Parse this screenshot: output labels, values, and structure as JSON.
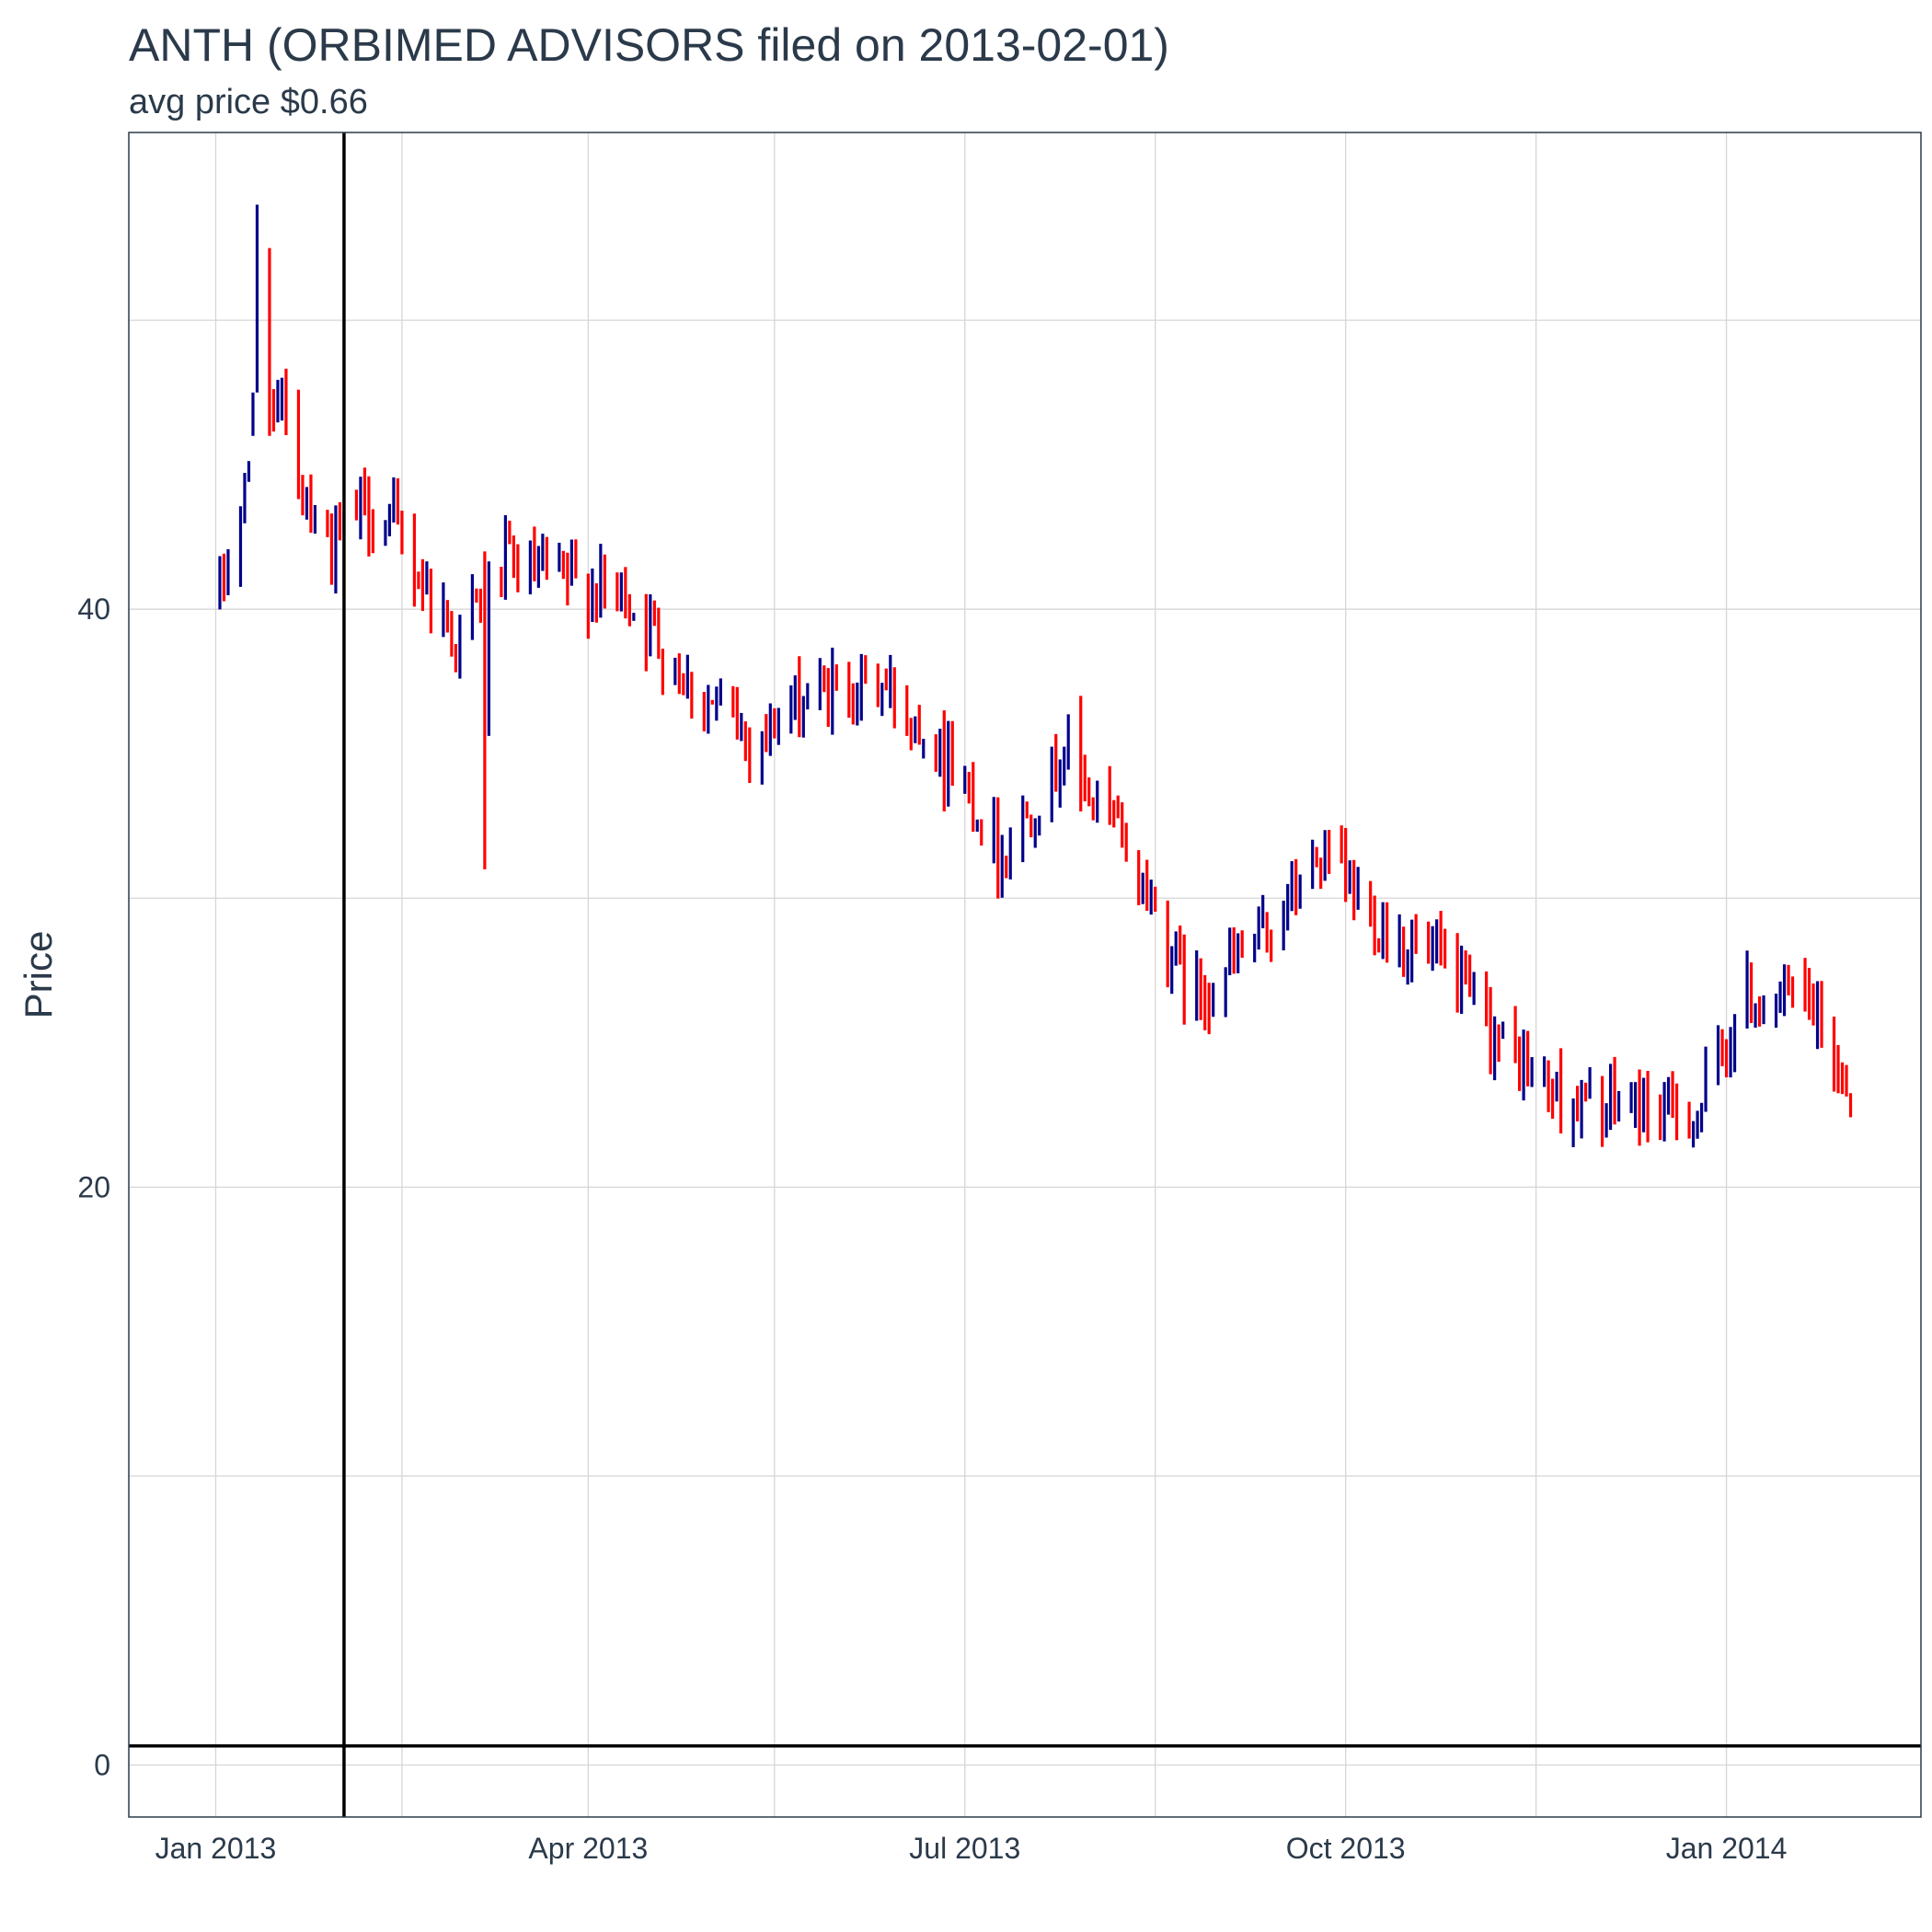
{
  "chart_data": {
    "type": "ohlc",
    "title": "ANTH (ORBIMED ADVISORS filed on 2013-02-01)",
    "subtitle": "avg price $0.66",
    "ylabel": "Price",
    "xlabel": "",
    "ylim": [
      -1.8,
      56.5
    ],
    "xlim": [
      "2012-12-11",
      "2014-02-17"
    ],
    "y_ticks": [
      0,
      20,
      40
    ],
    "y_minor_ticks": [
      10,
      30,
      50
    ],
    "x_ticks": [
      {
        "date": "2013-01-01",
        "label": "Jan 2013"
      },
      {
        "date": "2013-04-01",
        "label": "Apr 2013"
      },
      {
        "date": "2013-07-01",
        "label": "Jul 2013"
      },
      {
        "date": "2013-10-01",
        "label": "Oct 2013"
      },
      {
        "date": "2014-01-01",
        "label": "Jan 2014"
      }
    ],
    "x_minor_ticks": [
      "2013-02-15",
      "2013-05-16",
      "2013-08-16",
      "2013-11-16"
    ],
    "vline_date": "2013-02-01",
    "hline_value": 0.66,
    "grid": true,
    "colors": {
      "up": "#00008b",
      "down": "#ff0000",
      "grid": "#d6d6d6",
      "reference_line": "#000000",
      "border": "#2b3a4a"
    },
    "anchors": [
      [
        "2013-01-02",
        40.5
      ],
      [
        "2013-01-08",
        44.0
      ],
      [
        "2013-01-15",
        47.5
      ],
      [
        "2013-01-22",
        44.5
      ],
      [
        "2013-01-29",
        42.0
      ],
      [
        "2013-02-05",
        43.5
      ],
      [
        "2013-02-12",
        43.0
      ],
      [
        "2013-02-20",
        41.0
      ],
      [
        "2013-02-28",
        39.0
      ],
      [
        "2013-03-12",
        41.5
      ],
      [
        "2013-03-25",
        41.0
      ],
      [
        "2013-04-10",
        40.5
      ],
      [
        "2013-04-25",
        37.5
      ],
      [
        "2013-05-10",
        35.5
      ],
      [
        "2013-05-25",
        37.0
      ],
      [
        "2013-06-10",
        37.5
      ],
      [
        "2013-06-25",
        35.5
      ],
      [
        "2013-07-10",
        31.5
      ],
      [
        "2013-07-25",
        35.0
      ],
      [
        "2013-08-10",
        31.5
      ],
      [
        "2013-08-25",
        26.5
      ],
      [
        "2013-09-10",
        28.5
      ],
      [
        "2013-09-25",
        31.5
      ],
      [
        "2013-10-10",
        29.0
      ],
      [
        "2013-10-25",
        27.5
      ],
      [
        "2013-11-10",
        24.5
      ],
      [
        "2013-11-25",
        22.8
      ],
      [
        "2013-12-10",
        22.8
      ],
      [
        "2013-12-25",
        22.5
      ],
      [
        "2014-01-05",
        26.5
      ],
      [
        "2014-01-20",
        26.5
      ],
      [
        "2014-02-01",
        23.0
      ]
    ],
    "ohlc": [
      {
        "date": "2013-01-10",
        "open": 46.5,
        "high": 47.5,
        "low": 46.0,
        "close": 47.0
      },
      {
        "date": "2013-01-11",
        "open": 49.5,
        "high": 54.0,
        "low": 47.5,
        "close": 50.0
      },
      {
        "date": "2013-01-14",
        "open": 50.0,
        "high": 52.5,
        "low": 46.0,
        "close": 47.5
      },
      {
        "date": "2013-03-07",
        "open": 41.5,
        "high": 42.0,
        "low": 31.0,
        "close": 36.5
      },
      {
        "date": "2013-07-29",
        "open": 37.0,
        "high": 37.0,
        "low": 33.0,
        "close": 34.5
      },
      {
        "date": "2013-07-07",
        "open": 32.0,
        "high": 33.0,
        "low": 29.5,
        "close": 30.0
      },
      {
        "date": "2013-06-26",
        "open": 35.0,
        "high": 36.5,
        "low": 33.0,
        "close": 34.0
      }
    ]
  }
}
